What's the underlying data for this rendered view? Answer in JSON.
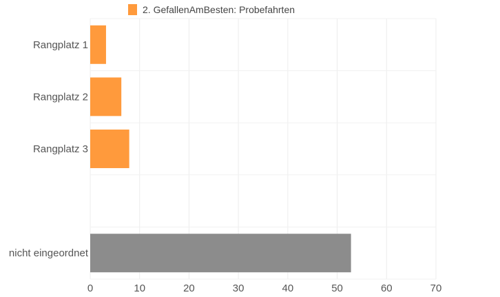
{
  "chart_data": {
    "type": "bar",
    "orientation": "horizontal",
    "title": "",
    "xlabel": "",
    "ylabel": "",
    "categories": [
      "Rangplatz 1",
      "Rangplatz 2",
      "Rangplatz 3",
      "",
      "nicht eingeordnet"
    ],
    "series": [
      {
        "name": "2. GefallenAmBesten: Probefahrten",
        "color": "#ff9a3c",
        "values": [
          3.2,
          6.3,
          7.9,
          null,
          null
        ]
      },
      {
        "name": "",
        "color": "#8c8c8c",
        "values": [
          null,
          null,
          null,
          null,
          52.8
        ]
      }
    ],
    "xlim": [
      0,
      70
    ],
    "xticks": [
      "0",
      "10",
      "20",
      "30",
      "40",
      "50",
      "60",
      "70"
    ],
    "grid": true,
    "legend_position": "top"
  }
}
